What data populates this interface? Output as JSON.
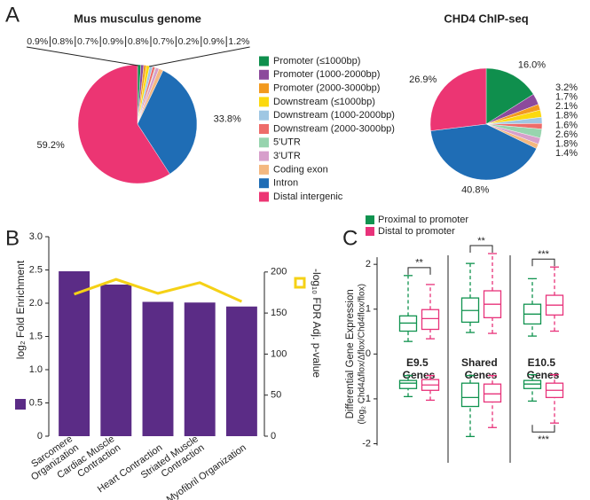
{
  "chart_data": [
    {
      "type": "pie",
      "panel": "A",
      "title": "Mus musculus genome",
      "categories": [
        "Promoter (≤1000bp)",
        "Promoter (1000-2000bp)",
        "Promoter (2000-3000bp)",
        "Downstream (≤1000bp)",
        "Downstream (1000-2000bp)",
        "Downstream (2000-3000bp)",
        "5'UTR",
        "3'UTR",
        "Coding exon",
        "Intron",
        "Distal intergenic"
      ],
      "colors": [
        "#0f8f4d",
        "#8c4a9c",
        "#f29a1f",
        "#fcd90f",
        "#9fc7e3",
        "#ee6c6a",
        "#97d4ae",
        "#d79fcb",
        "#f4b880",
        "#1f6db5",
        "#ec3573"
      ],
      "values": [
        0.9,
        0.8,
        0.7,
        0.9,
        0.8,
        0.7,
        0.2,
        0.9,
        1.2,
        33.8,
        59.2
      ],
      "value_labels": [
        "0.9%",
        "0.8%",
        "0.7%",
        "0.9%",
        "0.8%",
        "0.7%",
        "0.2%",
        "0.9%",
        "1.2%",
        "33.8%",
        "59.2%"
      ],
      "legend": "right"
    },
    {
      "type": "pie",
      "title": "CHD4 ChIP-seq",
      "colors": [
        "#0f8f4d",
        "#8c4a9c",
        "#f29a1f",
        "#fcd90f",
        "#9fc7e3",
        "#ee6c6a",
        "#97d4ae",
        "#d79fcb",
        "#f4b880",
        "#1f6db5",
        "#ec3573"
      ],
      "values": [
        16.0,
        3.2,
        1.7,
        2.1,
        1.8,
        1.6,
        2.6,
        1.8,
        1.4,
        40.8,
        26.9
      ],
      "value_labels": [
        "16.0%",
        "3.2%",
        "1.7%",
        "2.1%",
        "1.8%",
        "1.6%",
        "2.6%",
        "1.8%",
        "1.4%",
        "40.8%",
        "26.9%"
      ]
    },
    {
      "type": "bar",
      "panel": "B",
      "categories": [
        [
          "Sarcomere",
          "Organization"
        ],
        [
          "Cardiac Muscle",
          "Contraction"
        ],
        [
          "Heart Contraction"
        ],
        [
          "Striated Muscle",
          "Contraction"
        ],
        [
          "Myofibril Organization"
        ]
      ],
      "series": [
        {
          "type": "bar",
          "color": "#5b2c86",
          "values": [
            2.48,
            2.28,
            2.02,
            2.01,
            1.95
          ]
        },
        {
          "type": "line",
          "color": "#f5d116",
          "axis": "y2",
          "values": [
            173,
            191,
            174,
            187,
            164
          ]
        }
      ],
      "ylabel": "log₂ Fold Enrichment",
      "y2label": "-log₁₀ FDR Adj. p-value",
      "ylim": [
        0,
        3
      ],
      "yticks": [
        0,
        0.5,
        {
          "value": 1,
          "label": "1.0"
        },
        1.5,
        {
          "value": 2,
          "label": "2.0"
        },
        2.5,
        {
          "value": 3,
          "label": "3.0"
        }
      ],
      "y2lim": [
        0,
        243
      ],
      "y2ticks": [
        0,
        50,
        100,
        150,
        200
      ]
    },
    {
      "type": "box",
      "panel": "C",
      "groups": [
        "E9.5 Genes",
        "Shared Genes",
        "E10.5 Genes"
      ],
      "series": [
        {
          "name": "Proximal to promoter",
          "color": "#10934f",
          "up": [
            [
              0.28,
              0.51,
              0.69,
              0.85,
              1.75
            ],
            [
              0.48,
              0.71,
              0.97,
              1.25,
              2.02
            ],
            [
              0.4,
              0.67,
              0.89,
              1.11,
              1.68
            ]
          ],
          "down": [
            [
              -0.95,
              -0.77,
              -0.65,
              -0.59,
              -0.48
            ],
            [
              -1.84,
              -1.17,
              -0.97,
              -0.65,
              -0.48
            ],
            [
              -1.05,
              -0.77,
              -0.67,
              -0.59,
              -0.46
            ]
          ]
        },
        {
          "name": "Distal to promoter",
          "color": "#e8327a",
          "up": [
            [
              0.34,
              0.55,
              0.79,
              0.99,
              1.55
            ],
            [
              0.46,
              0.81,
              1.11,
              1.41,
              2.24
            ],
            [
              0.51,
              0.87,
              1.09,
              1.31,
              1.94
            ]
          ],
          "down": [
            [
              -1.03,
              -0.81,
              -0.69,
              -0.57,
              -0.48
            ],
            [
              -1.64,
              -1.07,
              -0.89,
              -0.67,
              -0.48
            ],
            [
              -1.54,
              -0.97,
              -0.81,
              -0.65,
              -0.46
            ]
          ]
        }
      ],
      "up_significance": [
        "**",
        "**",
        "***"
      ],
      "down_significance": [
        null,
        null,
        "***"
      ],
      "ylabel": [
        "Differential Gene Expression",
        "(log₂ Chd4Δflox/Δflox/Chd4flox/flox)"
      ],
      "ylim": [
        -2.05,
        2.3
      ],
      "yticks": [
        -2,
        -1,
        0,
        1,
        2
      ]
    }
  ]
}
